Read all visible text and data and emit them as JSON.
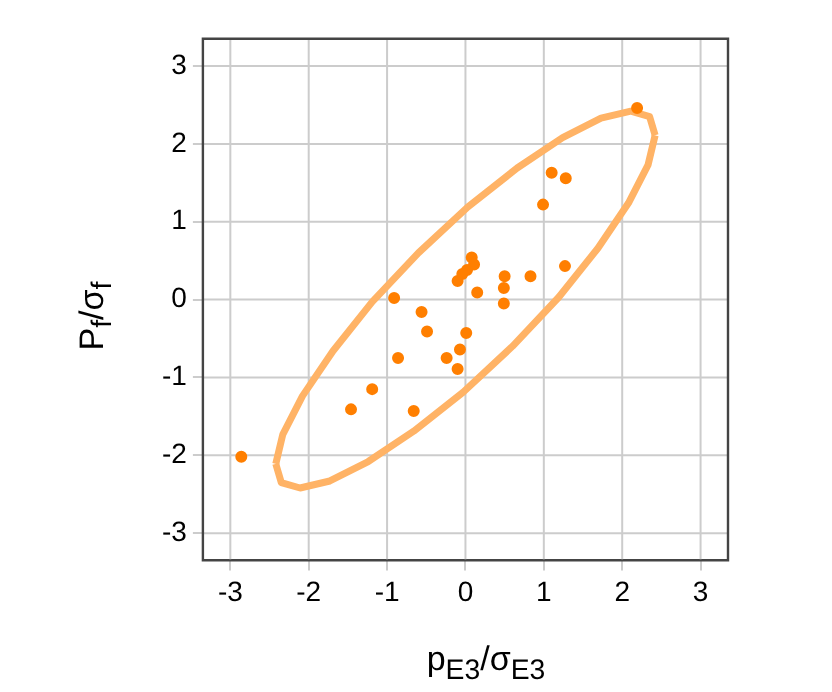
{
  "chart_data": {
    "type": "scatter",
    "xlabel": "p$_{E3}$/σ$_{E3}$",
    "ylabel": "P$_{f}$/σ$_{f}$",
    "xlim": [
      -3.35,
      3.35
    ],
    "ylim": [
      -3.35,
      3.35
    ],
    "xticks": [
      -3,
      -2,
      -1,
      0,
      1,
      2,
      3
    ],
    "yticks": [
      -3,
      -2,
      -1,
      0,
      1,
      2,
      3
    ],
    "grid": true,
    "marker": "circle",
    "series": [
      {
        "color": "#ff7f00",
        "x": [
          2.19,
          1.1,
          1.28,
          0.99,
          0.08,
          0.11,
          0.02,
          -0.04,
          -0.1,
          1.27,
          0.5,
          0.83,
          0.49,
          0.15,
          0.49,
          -0.91,
          -0.56,
          -0.49,
          0.01,
          -0.07,
          -0.24,
          -0.86,
          -0.1,
          -1.19,
          -1.46,
          -0.66,
          -2.86
        ],
        "values": [
          2.46,
          1.63,
          1.56,
          1.22,
          0.54,
          0.45,
          0.38,
          0.33,
          0.24,
          0.43,
          0.3,
          0.3,
          0.15,
          0.09,
          -0.05,
          0.02,
          -0.16,
          -0.41,
          -0.43,
          -0.64,
          -0.75,
          -0.75,
          -0.89,
          -1.15,
          -1.41,
          -1.43,
          -2.02
        ]
      },
      {
        "type": "line",
        "color": "#ffb366",
        "marker": "none",
        "x": [
          -2.42,
          -2.33,
          -2.08,
          -1.69,
          -1.19,
          -0.6,
          0.03,
          0.66,
          1.24,
          1.73,
          2.11,
          2.35,
          2.42
        ],
        "values": [
          -2.11,
          -1.73,
          -1.24,
          -0.66,
          -0.03,
          0.6,
          1.19,
          1.69,
          2.08,
          2.33,
          2.42,
          2.35,
          2.11
        ]
      },
      {
        "type": "line",
        "color": "#ffb366",
        "marker": "none",
        "x": [
          -2.42,
          -2.35,
          -2.11,
          -1.73,
          -1.24,
          -0.66,
          -0.03,
          0.6,
          1.19,
          1.69,
          2.08,
          2.33,
          2.42
        ],
        "values": [
          -2.11,
          -2.35,
          -2.42,
          -2.33,
          -2.08,
          -1.69,
          -1.19,
          -0.6,
          0.03,
          0.66,
          1.24,
          1.73,
          2.11
        ]
      }
    ]
  }
}
